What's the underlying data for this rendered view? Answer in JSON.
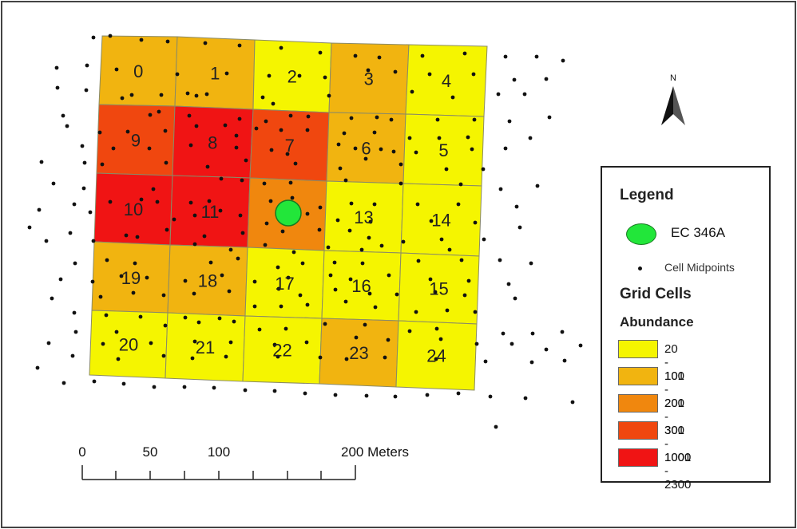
{
  "map": {
    "cells": [
      {
        "id": "0",
        "abundance_class": "101 - 200"
      },
      {
        "id": "1",
        "abundance_class": "101 - 200"
      },
      {
        "id": "2",
        "abundance_class": "20 - 100"
      },
      {
        "id": "3",
        "abundance_class": "101 - 200"
      },
      {
        "id": "4",
        "abundance_class": "20 - 100"
      },
      {
        "id": "9",
        "abundance_class": "301 - 1000"
      },
      {
        "id": "8",
        "abundance_class": "1001 - 2300"
      },
      {
        "id": "7",
        "abundance_class": "301 - 1000"
      },
      {
        "id": "6",
        "abundance_class": "101 - 200"
      },
      {
        "id": "5",
        "abundance_class": "20 - 100"
      },
      {
        "id": "10",
        "abundance_class": "1001 - 2300"
      },
      {
        "id": "11",
        "abundance_class": "1001 - 2300"
      },
      {
        "id": "12",
        "abundance_class": "201 - 300"
      },
      {
        "id": "13",
        "abundance_class": "20 - 100"
      },
      {
        "id": "14",
        "abundance_class": "20 - 100"
      },
      {
        "id": "19",
        "abundance_class": "101 - 200"
      },
      {
        "id": "18",
        "abundance_class": "101 - 200"
      },
      {
        "id": "17",
        "abundance_class": "20 - 100"
      },
      {
        "id": "16",
        "abundance_class": "20 - 100"
      },
      {
        "id": "15",
        "abundance_class": "20 - 100"
      },
      {
        "id": "20",
        "abundance_class": "20 - 100"
      },
      {
        "id": "21",
        "abundance_class": "20 - 100"
      },
      {
        "id": "22",
        "abundance_class": "20 - 100"
      },
      {
        "id": "23",
        "abundance_class": "101 - 200"
      },
      {
        "id": "24",
        "abundance_class": "20 - 100"
      }
    ],
    "north_label": "N",
    "scale_bar": {
      "labels": [
        "0",
        "50",
        "100",
        "200 Meters"
      ]
    }
  },
  "legend": {
    "title": "Legend",
    "station_label": "EC 346A",
    "midpoint_label": "Cell Midpoints",
    "grid_title": "Grid Cells",
    "field_title": "Abundance",
    "classes": [
      {
        "label": "20 - 100",
        "color": "#f5f500"
      },
      {
        "label": "101 - 200",
        "color": "#f1b410"
      },
      {
        "label": "201 - 300",
        "color": "#f0870e"
      },
      {
        "label": "301 - 1000",
        "color": "#f0470f"
      },
      {
        "label": "1001 - 2300",
        "color": "#f01414"
      }
    ]
  }
}
